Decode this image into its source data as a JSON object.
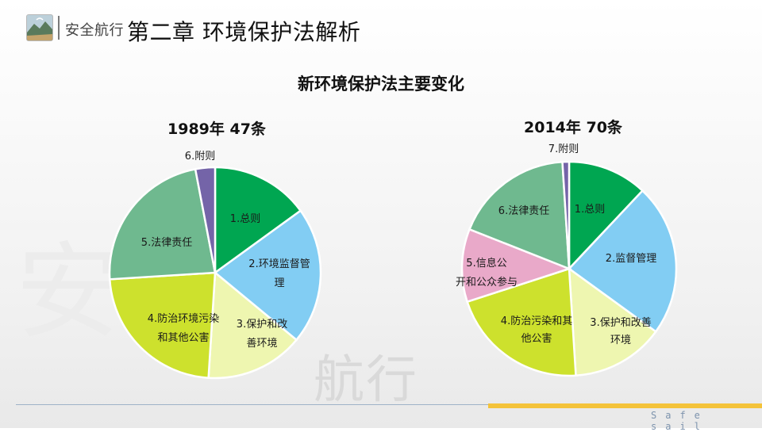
{
  "header": {
    "brand": "安全航行",
    "chapter_title": "第二章 环境保护法解析"
  },
  "watermark": {
    "big": "安",
    "small": "航行"
  },
  "main": {
    "title": "新环境保护法主要变化"
  },
  "footer": {
    "text": "Safe sail"
  },
  "chart_data": [
    {
      "type": "pie",
      "title": "1989年 47条",
      "slices": [
        {
          "label": "1.总则",
          "value": 15,
          "color": "#00a651"
        },
        {
          "label": "2.环境监督管理",
          "value": 21,
          "color": "#82cdf3"
        },
        {
          "label": "3.保护和改善环境",
          "value": 15,
          "color": "#eef6b0"
        },
        {
          "label": "4.防治环境污染和其他公害",
          "value": 23,
          "color": "#cde12d"
        },
        {
          "label": "5.法律责任",
          "value": 23,
          "color": "#6fb98f"
        },
        {
          "label": "6.附则",
          "value": 3,
          "color": "#7464a8"
        }
      ]
    },
    {
      "type": "pie",
      "title": "2014年 70条",
      "slices": [
        {
          "label": "1.总则",
          "value": 12,
          "color": "#00a651"
        },
        {
          "label": "2.监督管理",
          "value": 23,
          "color": "#82cdf3"
        },
        {
          "label": "3.保护和改善环境",
          "value": 14,
          "color": "#eef6b0"
        },
        {
          "label": "4.防治污染和其他公害",
          "value": 21,
          "color": "#cde12d"
        },
        {
          "label": "5.信息公开和公众参与",
          "value": 11,
          "color": "#e9a9c9"
        },
        {
          "label": "6.法律责任",
          "value": 18,
          "color": "#6fb98f"
        },
        {
          "label": "7.附则",
          "value": 1,
          "color": "#7464a8"
        }
      ]
    }
  ]
}
